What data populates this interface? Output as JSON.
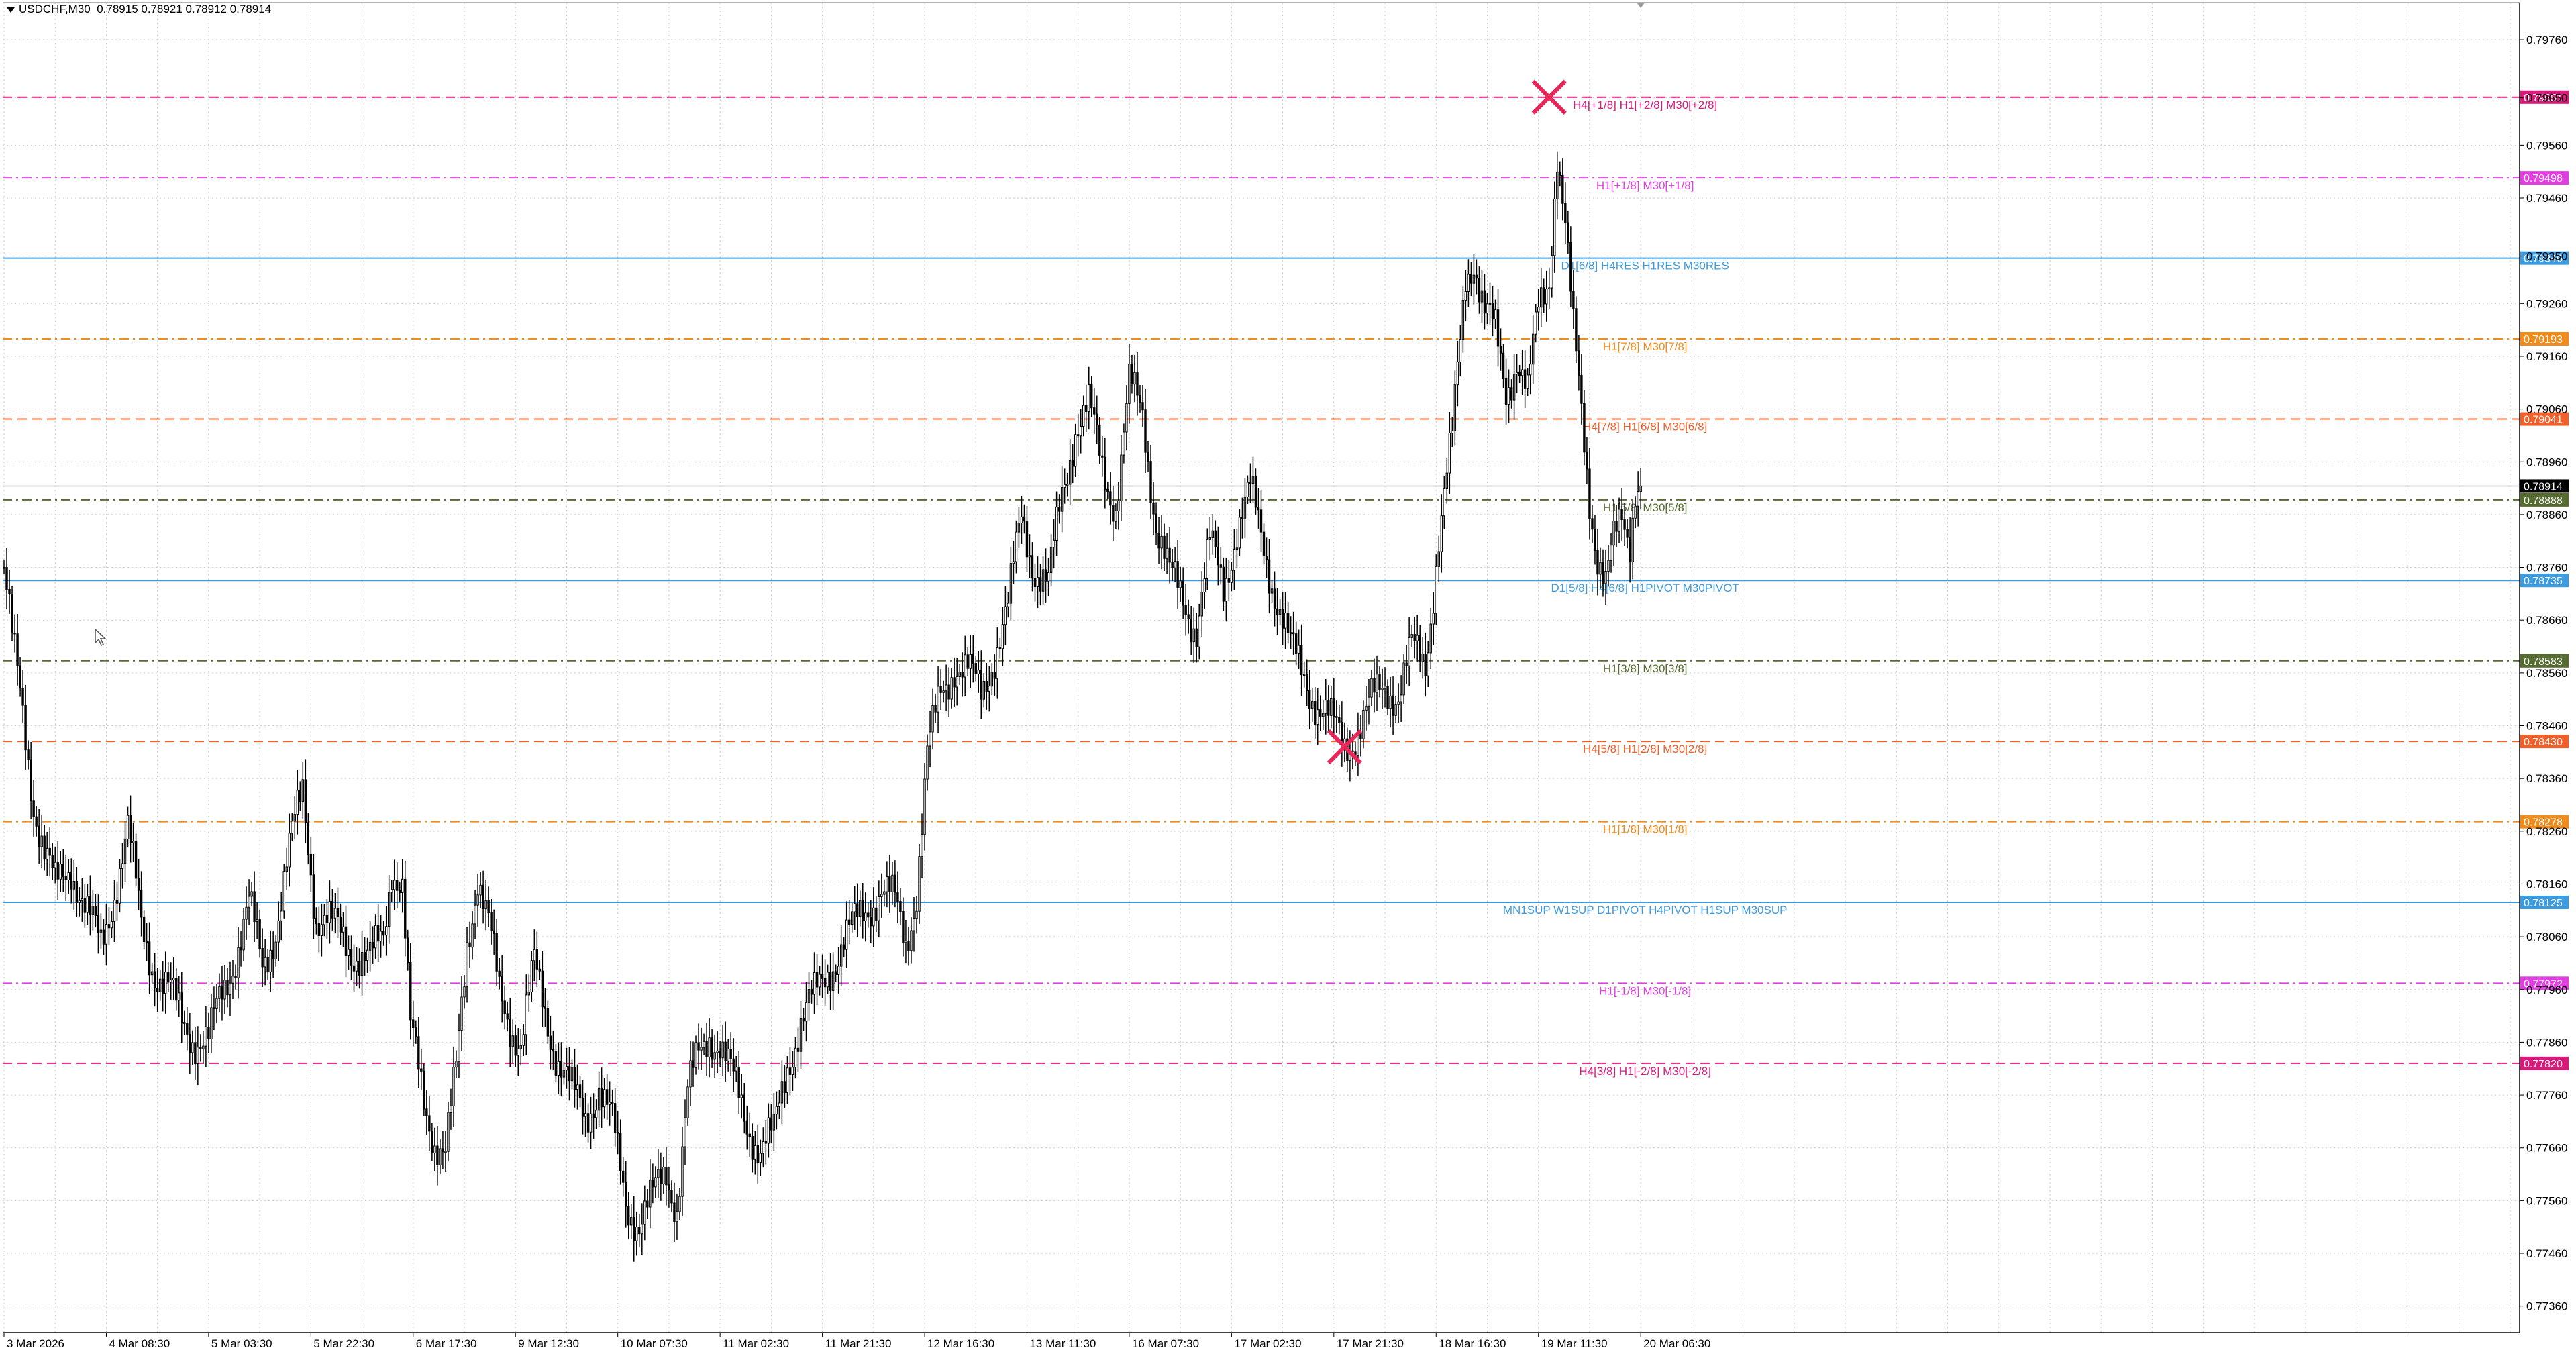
{
  "header": {
    "symbol": "USDCHF,M30",
    "ohlc": "0.78915 0.78921 0.78912 0.78914"
  },
  "chart_data": {
    "type": "candlestick",
    "symbol": "USDCHF",
    "timeframe": "M30",
    "ylim": [
      0.7731,
      0.7983
    ],
    "grid": true,
    "y_ticks": [
      "0.79760",
      "0.79650",
      "0.79560",
      "0.79460",
      "0.79350",
      "0.79260",
      "0.79160",
      "0.79060",
      "0.78960",
      "0.78860",
      "0.78760",
      "0.78660",
      "0.78560",
      "0.78460",
      "0.78360",
      "0.78260",
      "0.78160",
      "0.78060",
      "0.77960",
      "0.77860",
      "0.77760",
      "0.77660",
      "0.77560",
      "0.77460",
      "0.77360"
    ],
    "x_ticks": [
      "3 Mar 2026",
      "4 Mar 08:30",
      "5 Mar 03:30",
      "5 Mar 22:30",
      "6 Mar 17:30",
      "9 Mar 12:30",
      "10 Mar 07:30",
      "11 Mar 02:30",
      "11 Mar 21:30",
      "12 Mar 16:30",
      "13 Mar 11:30",
      "16 Mar 07:30",
      "17 Mar 02:30",
      "17 Mar 21:30",
      "18 Mar 16:30",
      "19 Mar 11:30",
      "20 Mar 06:30"
    ],
    "x_tick_bar_index": [
      0,
      38,
      76,
      114,
      152,
      190,
      228,
      266,
      304,
      342,
      380,
      418,
      456,
      494,
      532,
      570,
      608
    ],
    "total_bar_slots": 935,
    "price_anchors": [
      [
        0,
        0.7876
      ],
      [
        3,
        0.7862
      ],
      [
        7,
        0.7848
      ],
      [
        11,
        0.7832
      ],
      [
        15,
        0.7822
      ],
      [
        19,
        0.7815
      ],
      [
        25,
        0.782
      ],
      [
        31,
        0.781
      ],
      [
        36,
        0.7804
      ],
      [
        41,
        0.7815
      ],
      [
        46,
        0.7826
      ],
      [
        51,
        0.7808
      ],
      [
        56,
        0.78
      ],
      [
        61,
        0.7796
      ],
      [
        66,
        0.779
      ],
      [
        71,
        0.7787
      ],
      [
        76,
        0.7786
      ],
      [
        81,
        0.7795
      ],
      [
        86,
        0.7803
      ],
      [
        91,
        0.7812
      ],
      [
        96,
        0.78
      ],
      [
        101,
        0.7808
      ],
      [
        106,
        0.7822
      ],
      [
        111,
        0.7834
      ],
      [
        116,
        0.781
      ],
      [
        121,
        0.7808
      ],
      [
        126,
        0.7806
      ],
      [
        131,
        0.7803
      ],
      [
        136,
        0.7801
      ],
      [
        141,
        0.7806
      ],
      [
        144,
        0.782
      ],
      [
        148,
        0.7816
      ],
      [
        151,
        0.7788
      ],
      [
        156,
        0.7775
      ],
      [
        160,
        0.7768
      ],
      [
        164,
        0.7765
      ],
      [
        168,
        0.778
      ],
      [
        172,
        0.7805
      ],
      [
        176,
        0.7818
      ],
      [
        180,
        0.7808
      ],
      [
        184,
        0.7795
      ],
      [
        188,
        0.779
      ],
      [
        192,
        0.7786
      ],
      [
        197,
        0.78
      ],
      [
        202,
        0.779
      ],
      [
        206,
        0.7783
      ],
      [
        211,
        0.7776
      ],
      [
        216,
        0.7772
      ],
      [
        221,
        0.7778
      ],
      [
        226,
        0.777
      ],
      [
        231,
        0.7756
      ],
      [
        236,
        0.7752
      ],
      [
        241,
        0.7756
      ],
      [
        246,
        0.7762
      ],
      [
        250,
        0.7755
      ],
      [
        254,
        0.7776
      ],
      [
        258,
        0.7783
      ],
      [
        262,
        0.7788
      ],
      [
        266,
        0.7786
      ],
      [
        271,
        0.7778
      ],
      [
        276,
        0.7771
      ],
      [
        281,
        0.7766
      ],
      [
        286,
        0.7768
      ],
      [
        291,
        0.7782
      ],
      [
        296,
        0.779
      ],
      [
        301,
        0.7794
      ],
      [
        306,
        0.78
      ],
      [
        311,
        0.7804
      ],
      [
        316,
        0.7808
      ],
      [
        321,
        0.7812
      ],
      [
        326,
        0.7815
      ],
      [
        331,
        0.7812
      ],
      [
        335,
        0.7805
      ],
      [
        339,
        0.7815
      ],
      [
        343,
        0.784
      ],
      [
        348,
        0.7852
      ],
      [
        353,
        0.7858
      ],
      [
        358,
        0.7856
      ],
      [
        363,
        0.7852
      ],
      [
        368,
        0.786
      ],
      [
        373,
        0.7868
      ],
      [
        378,
        0.7886
      ],
      [
        383,
        0.7876
      ],
      [
        388,
        0.7872
      ],
      [
        393,
        0.789
      ],
      [
        398,
        0.7903
      ],
      [
        403,
        0.7906
      ],
      [
        408,
        0.7895
      ],
      [
        413,
        0.7888
      ],
      [
        418,
        0.791
      ],
      [
        423,
        0.7905
      ],
      [
        428,
        0.7885
      ],
      [
        433,
        0.7874
      ],
      [
        438,
        0.787
      ],
      [
        443,
        0.7865
      ],
      [
        448,
        0.788
      ],
      [
        453,
        0.7872
      ],
      [
        458,
        0.7884
      ],
      [
        463,
        0.789
      ],
      [
        468,
        0.788
      ],
      [
        473,
        0.787
      ],
      [
        478,
        0.786
      ],
      [
        483,
        0.7856
      ],
      [
        488,
        0.785
      ],
      [
        493,
        0.7846
      ],
      [
        498,
        0.7843
      ],
      [
        503,
        0.7845
      ],
      [
        508,
        0.785
      ],
      [
        513,
        0.7854
      ],
      [
        518,
        0.7852
      ],
      [
        523,
        0.786
      ],
      [
        528,
        0.7858
      ],
      [
        533,
        0.7882
      ],
      [
        538,
        0.79
      ],
      [
        543,
        0.7932
      ],
      [
        546,
        0.7935
      ],
      [
        550,
        0.7924
      ],
      [
        554,
        0.792
      ],
      [
        558,
        0.791
      ],
      [
        562,
        0.7916
      ],
      [
        566,
        0.7908
      ],
      [
        570,
        0.7925
      ],
      [
        574,
        0.7932
      ],
      [
        577,
        0.7955
      ],
      [
        580,
        0.794
      ],
      [
        583,
        0.792
      ],
      [
        586,
        0.7906
      ],
      [
        589,
        0.789
      ],
      [
        592,
        0.7878
      ],
      [
        595,
        0.7872
      ],
      [
        598,
        0.788
      ],
      [
        601,
        0.7886
      ],
      [
        604,
        0.7882
      ],
      [
        606,
        0.7892
      ],
      [
        608,
        0.78914
      ]
    ],
    "levels": [
      {
        "price": 0.79651,
        "price_label": "0.79651",
        "label": "H4[+1/8] H1[+2/8] M30[+2/8]",
        "color": "#d81b7a",
        "style": "dash"
      },
      {
        "price": 0.79498,
        "price_label": "0.79498",
        "label": "H1[+1/8] M30[+1/8]",
        "color": "#e040e0",
        "style": "dashdot"
      },
      {
        "price": 0.79346,
        "price_label": "0.79346",
        "label": "D1[6/8] H4RES H1RES M30RES",
        "color": "#3d9be0",
        "style": "solid"
      },
      {
        "price": 0.79193,
        "price_label": "0.79193",
        "label": "H1[7/8] M30[7/8]",
        "color": "#f08c1c",
        "style": "dashdot"
      },
      {
        "price": 0.79041,
        "price_label": "0.79041",
        "label": "H4[7/8] H1[6/8] M30[6/8]",
        "color": "#f0602a",
        "style": "dash"
      },
      {
        "price": 0.78888,
        "price_label": "0.78888",
        "label": "H1[5/8] M30[5/8]",
        "color": "#556b2f",
        "style": "dashdot"
      },
      {
        "price": 0.78735,
        "price_label": "0.78735",
        "label": "D1[5/8] H4[6/8] H1PIVOT M30PIVOT",
        "color": "#3d9be0",
        "style": "solid"
      },
      {
        "price": 0.78583,
        "price_label": "0.78583",
        "label": "H1[3/8] M30[3/8]",
        "color": "#556b2f",
        "style": "dashdot"
      },
      {
        "price": 0.7843,
        "price_label": "0.78430",
        "label": "H4[5/8] H1[2/8] M30[2/8]",
        "color": "#f0602a",
        "style": "dash"
      },
      {
        "price": 0.78278,
        "price_label": "0.78278",
        "label": "H1[1/8] M30[1/8]",
        "color": "#f08c1c",
        "style": "dashdot"
      },
      {
        "price": 0.78125,
        "price_label": "0.78125",
        "label": "MN1SUP W1SUP D1PIVOT H4PIVOT H1SUP M30SUP",
        "color": "#3d9be0",
        "style": "solid"
      },
      {
        "price": 0.77972,
        "price_label": "0.77972",
        "label": "H1[-1/8] M30[-1/8]",
        "color": "#e040e0",
        "style": "dashdot"
      },
      {
        "price": 0.7782,
        "price_label": "0.77820",
        "label": "H4[3/8] H1[-2/8] M30[-2/8]",
        "color": "#d81b7a",
        "style": "dash"
      }
    ],
    "current_price": {
      "price": 0.78914,
      "label": "0.78914"
    },
    "markers": [
      {
        "type": "cross",
        "bar_index": 574,
        "price": 0.79651,
        "color": "#e8285a"
      },
      {
        "type": "cross",
        "bar_index": 498,
        "price": 0.7842,
        "color": "#e8285a"
      }
    ]
  }
}
